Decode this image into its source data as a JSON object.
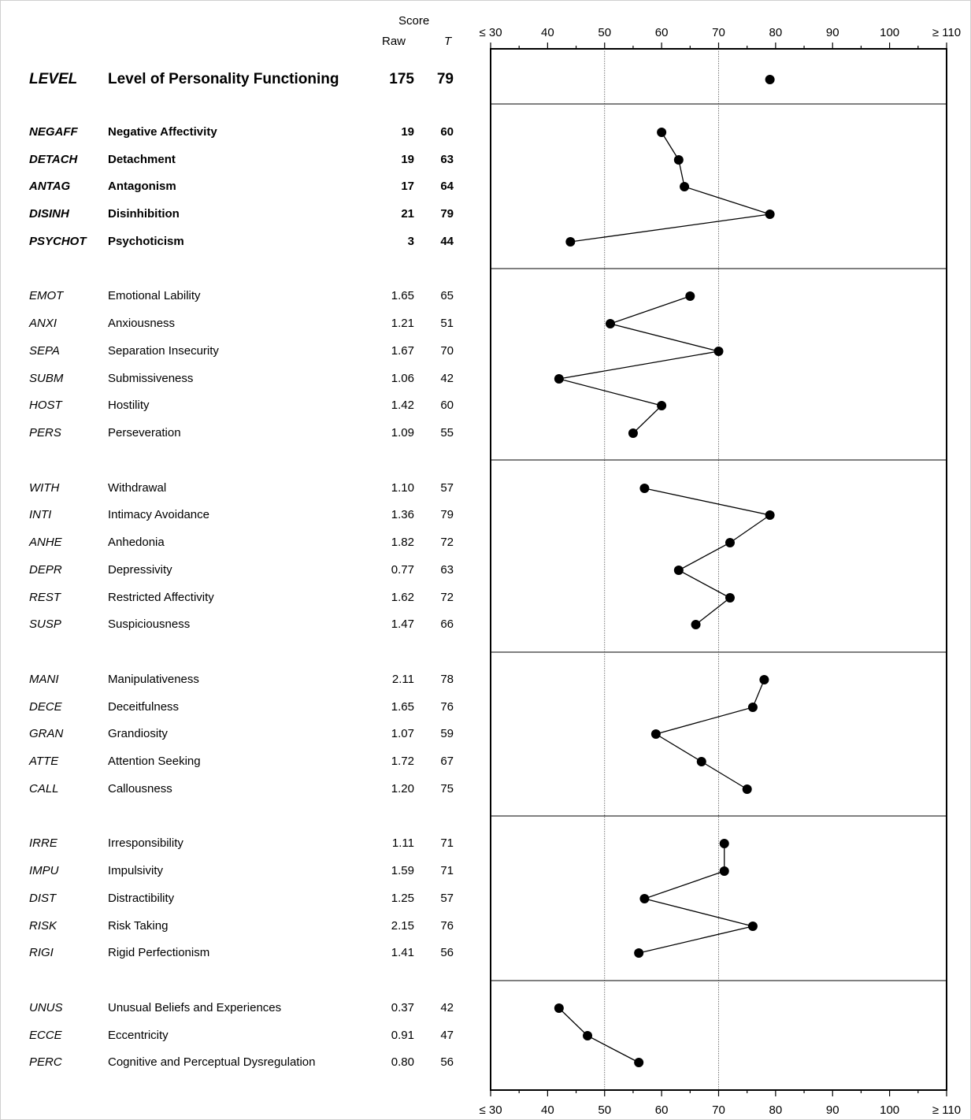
{
  "header": {
    "score_label": "Score",
    "raw_label": "Raw",
    "t_label": "T"
  },
  "rows": [
    {
      "abbr": "LEVEL",
      "name": "Level of Personality Functioning",
      "raw": "175",
      "t": "79",
      "kind": "level"
    },
    {
      "abbr": "NEGAFF",
      "name": "Negative Affectivity",
      "raw": "19",
      "t": "60",
      "kind": "domain"
    },
    {
      "abbr": "DETACH",
      "name": "Detachment",
      "raw": "19",
      "t": "63",
      "kind": "domain"
    },
    {
      "abbr": "ANTAG",
      "name": "Antagonism",
      "raw": "17",
      "t": "64",
      "kind": "domain"
    },
    {
      "abbr": "DISINH",
      "name": "Disinhibition",
      "raw": "21",
      "t": "79",
      "kind": "domain"
    },
    {
      "abbr": "PSYCHOT",
      "name": "Psychoticism",
      "raw": "3",
      "t": "44",
      "kind": "domain"
    },
    {
      "abbr": "EMOT",
      "name": "Emotional Lability",
      "raw": "1.65",
      "t": "65",
      "kind": "facet"
    },
    {
      "abbr": "ANXI",
      "name": "Anxiousness",
      "raw": "1.21",
      "t": "51",
      "kind": "facet"
    },
    {
      "abbr": "SEPA",
      "name": "Separation Insecurity",
      "raw": "1.67",
      "t": "70",
      "kind": "facet"
    },
    {
      "abbr": "SUBM",
      "name": "Submissiveness",
      "raw": "1.06",
      "t": "42",
      "kind": "facet"
    },
    {
      "abbr": "HOST",
      "name": "Hostility",
      "raw": "1.42",
      "t": "60",
      "kind": "facet"
    },
    {
      "abbr": "PERS",
      "name": "Perseveration",
      "raw": "1.09",
      "t": "55",
      "kind": "facet"
    },
    {
      "abbr": "WITH",
      "name": "Withdrawal",
      "raw": "1.10",
      "t": "57",
      "kind": "facet"
    },
    {
      "abbr": "INTI",
      "name": "Intimacy Avoidance",
      "raw": "1.36",
      "t": "79",
      "kind": "facet"
    },
    {
      "abbr": "ANHE",
      "name": "Anhedonia",
      "raw": "1.82",
      "t": "72",
      "kind": "facet"
    },
    {
      "abbr": "DEPR",
      "name": "Depressivity",
      "raw": "0.77",
      "t": "63",
      "kind": "facet"
    },
    {
      "abbr": "REST",
      "name": "Restricted Affectivity",
      "raw": "1.62",
      "t": "72",
      "kind": "facet"
    },
    {
      "abbr": "SUSP",
      "name": "Suspiciousness",
      "raw": "1.47",
      "t": "66",
      "kind": "facet"
    },
    {
      "abbr": "MANI",
      "name": "Manipulativeness",
      "raw": "2.11",
      "t": "78",
      "kind": "facet"
    },
    {
      "abbr": "DECE",
      "name": "Deceitfulness",
      "raw": "1.65",
      "t": "76",
      "kind": "facet"
    },
    {
      "abbr": "GRAN",
      "name": "Grandiosity",
      "raw": "1.07",
      "t": "59",
      "kind": "facet"
    },
    {
      "abbr": "ATTE",
      "name": "Attention Seeking",
      "raw": "1.72",
      "t": "67",
      "kind": "facet"
    },
    {
      "abbr": "CALL",
      "name": "Callousness",
      "raw": "1.20",
      "t": "75",
      "kind": "facet"
    },
    {
      "abbr": "IRRE",
      "name": "Irresponsibility",
      "raw": "1.11",
      "t": "71",
      "kind": "facet"
    },
    {
      "abbr": "IMPU",
      "name": "Impulsivity",
      "raw": "1.59",
      "t": "71",
      "kind": "facet"
    },
    {
      "abbr": "DIST",
      "name": "Distractibility",
      "raw": "1.25",
      "t": "57",
      "kind": "facet"
    },
    {
      "abbr": "RISK",
      "name": "Risk Taking",
      "raw": "2.15",
      "t": "76",
      "kind": "facet"
    },
    {
      "abbr": "RIGI",
      "name": "Rigid Perfectionism",
      "raw": "1.41",
      "t": "56",
      "kind": "facet"
    },
    {
      "abbr": "UNUS",
      "name": "Unusual Beliefs and Experiences",
      "raw": "0.37",
      "t": "42",
      "kind": "facet"
    },
    {
      "abbr": "ECCE",
      "name": "Eccentricity",
      "raw": "0.91",
      "t": "47",
      "kind": "facet"
    },
    {
      "abbr": "PERC",
      "name": "Cognitive and Perceptual Dysregulation",
      "raw": "0.80",
      "t": "56",
      "kind": "facet"
    }
  ],
  "chart_data": {
    "type": "line",
    "orientation": "horizontal-profile",
    "xlim": [
      30,
      110
    ],
    "x_ticks": [
      30,
      40,
      50,
      60,
      70,
      80,
      90,
      100,
      110
    ],
    "x_tick_labels": [
      "≤ 30",
      "40",
      "50",
      "60",
      "70",
      "80",
      "90",
      "100",
      "≥ 110"
    ],
    "reference_lines": [
      50,
      70
    ],
    "tick_labels_top_and_bottom": true,
    "grid": false,
    "groups": [
      {
        "labels": [
          "LEVEL"
        ],
        "values": [
          79
        ]
      },
      {
        "labels": [
          "NEGAFF",
          "DETACH",
          "ANTAG",
          "DISINH",
          "PSYCHOT"
        ],
        "values": [
          60,
          63,
          64,
          79,
          44
        ]
      },
      {
        "labels": [
          "EMOT",
          "ANXI",
          "SEPA",
          "SUBM",
          "HOST",
          "PERS"
        ],
        "values": [
          65,
          51,
          70,
          42,
          60,
          55
        ]
      },
      {
        "labels": [
          "WITH",
          "INTI",
          "ANHE",
          "DEPR",
          "REST",
          "SUSP"
        ],
        "values": [
          57,
          79,
          72,
          63,
          72,
          66
        ]
      },
      {
        "labels": [
          "MANI",
          "DECE",
          "GRAN",
          "ATTE",
          "CALL"
        ],
        "values": [
          78,
          76,
          59,
          67,
          75
        ]
      },
      {
        "labels": [
          "IRRE",
          "IMPU",
          "DIST",
          "RISK",
          "RIGI"
        ],
        "values": [
          71,
          71,
          57,
          76,
          56
        ]
      },
      {
        "labels": [
          "UNUS",
          "ECCE",
          "PERC"
        ],
        "values": [
          42,
          47,
          56
        ]
      }
    ],
    "colors": {
      "marker": "#000000",
      "line": "#000000",
      "reference_line": "#555555"
    }
  }
}
